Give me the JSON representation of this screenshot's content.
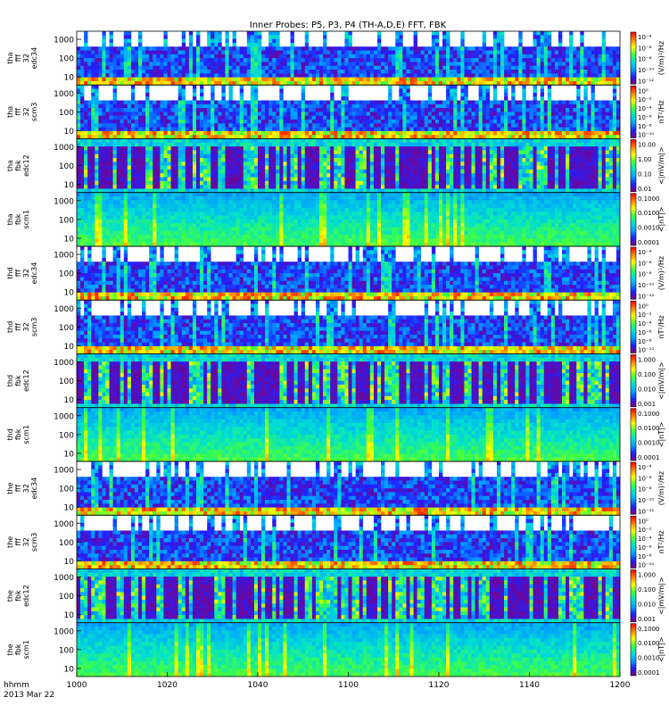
{
  "chart_data": {
    "type": "heatmap",
    "title": "Inner Probes: P5, P3, P4 (TH-A,D,E) FFT, FBK",
    "x_tick_labels": [
      "1000",
      "1020",
      "1040",
      "1100",
      "1120",
      "1140",
      "1200"
    ],
    "time_label": "hhmm",
    "date_label": "2013 Mar 22",
    "colormap": "rainbow",
    "panels": [
      {
        "probe": "tha",
        "label": [
          "tha",
          "fff",
          "32",
          "edc34"
        ],
        "y_scale": "log",
        "y_ticks": [
          "1000",
          "100",
          "10"
        ],
        "z_label": "(V/m)²/Hz",
        "z_scale": "log",
        "z_ticks": [
          "10⁻⁴",
          "10⁻⁶",
          "10⁻⁸",
          "10⁻¹⁰",
          "10⁻¹²"
        ]
      },
      {
        "probe": "tha",
        "label": [
          "tha",
          "fff",
          "32",
          "scm3"
        ],
        "y_scale": "log",
        "y_ticks": [
          "1000",
          "100",
          "10"
        ],
        "z_label": "nT²/Hz",
        "z_scale": "log",
        "z_ticks": [
          "10⁰",
          "10⁻²",
          "10⁻⁴",
          "10⁻⁶",
          "10⁻⁸",
          "10⁻¹⁰"
        ]
      },
      {
        "probe": "tha",
        "label": [
          "tha",
          "fbk",
          "edc12"
        ],
        "y_scale": "log",
        "y_ticks": [
          "1000",
          "100",
          "10"
        ],
        "z_label": "<|mV/m|>",
        "z_scale": "log",
        "z_ticks": [
          "10.00",
          "1.00",
          "0.10",
          "0.01"
        ]
      },
      {
        "probe": "tha",
        "label": [
          "tha",
          "fbk",
          "scm1"
        ],
        "y_scale": "log",
        "y_ticks": [
          "1000",
          "100",
          "10"
        ],
        "z_label": "<|nT|>",
        "z_scale": "log",
        "z_ticks": [
          "0.1000",
          "0.0100",
          "0.0010",
          "0.0001"
        ]
      },
      {
        "probe": "thd",
        "label": [
          "thd",
          "fff",
          "32",
          "edc34"
        ],
        "y_scale": "log",
        "y_ticks": [
          "1000",
          "100",
          "10"
        ],
        "z_label": "(V/m)²/Hz",
        "z_scale": "log",
        "z_ticks": [
          "10⁻⁴",
          "10⁻⁶",
          "10⁻⁸",
          "10⁻¹⁰",
          "10⁻¹²"
        ]
      },
      {
        "probe": "thd",
        "label": [
          "thd",
          "fff",
          "32",
          "scm3"
        ],
        "y_scale": "log",
        "y_ticks": [
          "1000",
          "100",
          "10"
        ],
        "z_label": "nT²/Hz",
        "z_scale": "log",
        "z_ticks": [
          "10⁰",
          "10⁻²",
          "10⁻⁴",
          "10⁻⁶",
          "10⁻⁸",
          "10⁻¹⁰"
        ]
      },
      {
        "probe": "thd",
        "label": [
          "thd",
          "fbk",
          "edc12"
        ],
        "y_scale": "log",
        "y_ticks": [
          "1000",
          "100",
          "10"
        ],
        "z_label": "<|mV/m|>",
        "z_scale": "log",
        "z_ticks": [
          "1.000",
          "0.100",
          "0.010",
          "0.001"
        ]
      },
      {
        "probe": "thd",
        "label": [
          "thd",
          "fbk",
          "scm1"
        ],
        "y_scale": "log",
        "y_ticks": [
          "1000",
          "100",
          "10"
        ],
        "z_label": "<|nT|>",
        "z_scale": "log",
        "z_ticks": [
          "0.1000",
          "0.0100",
          "0.0010",
          "0.0001"
        ]
      },
      {
        "probe": "the",
        "label": [
          "the",
          "fff",
          "32",
          "edc34"
        ],
        "y_scale": "log",
        "y_ticks": [
          "1000",
          "100",
          "10"
        ],
        "z_label": "(V/m)²/Hz",
        "z_scale": "log",
        "z_ticks": [
          "10⁻⁴",
          "10⁻⁶",
          "10⁻⁸",
          "10⁻¹⁰",
          "10⁻¹²"
        ]
      },
      {
        "probe": "the",
        "label": [
          "the",
          "fff",
          "32",
          "scm3"
        ],
        "y_scale": "log",
        "y_ticks": [
          "1000",
          "100",
          "10"
        ],
        "z_label": "nT²/Hz",
        "z_scale": "log",
        "z_ticks": [
          "10⁰",
          "10⁻²",
          "10⁻⁴",
          "10⁻⁶",
          "10⁻⁸",
          "10⁻¹⁰"
        ]
      },
      {
        "probe": "the",
        "label": [
          "the",
          "fbk",
          "edc12"
        ],
        "y_scale": "log",
        "y_ticks": [
          "1000",
          "100",
          "10"
        ],
        "z_label": "<|mV/m|>",
        "z_scale": "log",
        "z_ticks": [
          "1.000",
          "0.100",
          "0.010",
          "0.001"
        ]
      },
      {
        "probe": "the",
        "label": [
          "the",
          "fbk",
          "scm1"
        ],
        "y_scale": "log",
        "y_ticks": [
          "1000",
          "100",
          "10"
        ],
        "z_label": "<|nT|>",
        "z_scale": "log",
        "z_ticks": [
          "0.1000",
          "0.0100",
          "0.0010",
          "0.0001"
        ]
      }
    ]
  },
  "colors": {
    "background": "#ffffff",
    "axis": "#000000",
    "colormap_stops": [
      "#800080",
      "#2020ff",
      "#00a0ff",
      "#00e0d0",
      "#40ff40",
      "#ffff00",
      "#ff8000",
      "#ff0000"
    ]
  }
}
